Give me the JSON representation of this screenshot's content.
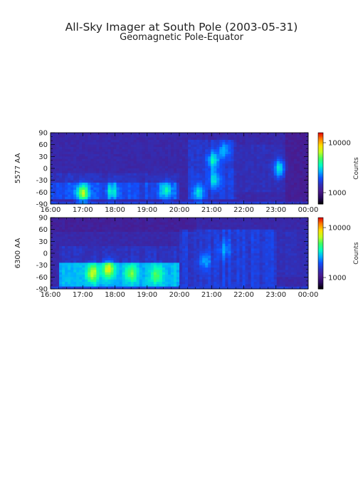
{
  "header": {
    "title": "All-Sky Imager at South Pole (2003-05-31)",
    "subtitle": "Geomagnetic Pole-Equator"
  },
  "colors": {
    "background": "#ffffff",
    "text": "#222222",
    "colormap": [
      "#000000",
      "#2a0a60",
      "#4a1a8c",
      "#3030b8",
      "#1050ff",
      "#00b0ff",
      "#00ffc0",
      "#40ff60",
      "#c0ff20",
      "#ffe000",
      "#ff8000",
      "#e00000"
    ]
  },
  "chart_data": [
    {
      "type": "heatmap",
      "id": "panel-5577",
      "ylabel": "5577 AA",
      "x_ticks": [
        "16:00",
        "17:00",
        "18:00",
        "19:00",
        "20:00",
        "21:00",
        "22:00",
        "23:00",
        "00:00"
      ],
      "xlim": [
        "16:00",
        "00:00"
      ],
      "y_ticks": [
        90,
        60,
        30,
        0,
        -30,
        -60,
        -90
      ],
      "ylim": [
        -90,
        90
      ],
      "colorbar": {
        "label": "Counts",
        "tick_labels": [
          "10000",
          "1000"
        ],
        "scale": "log"
      },
      "hotspots": [
        {
          "t": 17.0,
          "lat": -62,
          "level": 0.72
        },
        {
          "t": 17.9,
          "lat": -58,
          "level": 0.5
        },
        {
          "t": 19.6,
          "lat": -55,
          "level": 0.55
        },
        {
          "t": 20.6,
          "lat": -62,
          "level": 0.5
        },
        {
          "t": 21.1,
          "lat": -30,
          "level": 0.5
        },
        {
          "t": 21.05,
          "lat": 20,
          "level": 0.55
        },
        {
          "t": 21.4,
          "lat": 45,
          "level": 0.45
        },
        {
          "t": 23.1,
          "lat": 0,
          "level": 0.55
        }
      ]
    },
    {
      "type": "heatmap",
      "id": "panel-6300",
      "ylabel": "6300 AA",
      "x_ticks": [
        "16:00",
        "17:00",
        "18:00",
        "19:00",
        "20:00",
        "21:00",
        "22:00",
        "23:00",
        "00:00"
      ],
      "xlim": [
        "16:00",
        "00:00"
      ],
      "y_ticks": [
        90,
        60,
        30,
        0,
        -30,
        -60,
        -90
      ],
      "ylim": [
        -90,
        90
      ],
      "colorbar": {
        "label": "Counts",
        "tick_labels": [
          "10000",
          "1000"
        ],
        "scale": "log"
      },
      "hotspots": [
        {
          "t": 17.3,
          "lat": -50,
          "level": 0.6
        },
        {
          "t": 17.8,
          "lat": -40,
          "level": 0.62
        },
        {
          "t": 18.5,
          "lat": -50,
          "level": 0.52
        },
        {
          "t": 19.3,
          "lat": -55,
          "level": 0.48
        },
        {
          "t": 20.8,
          "lat": -20,
          "level": 0.45
        },
        {
          "t": 21.4,
          "lat": 10,
          "level": 0.42
        }
      ]
    }
  ]
}
